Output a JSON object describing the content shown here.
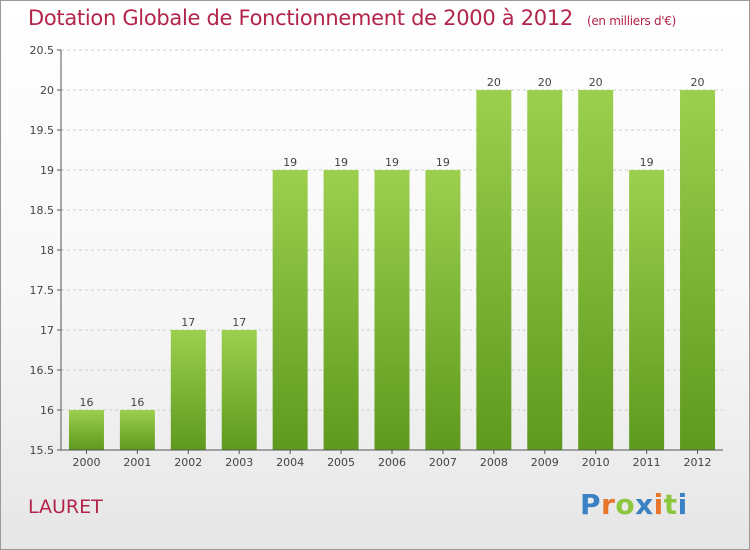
{
  "title": "Dotation Globale de Fonctionnement de 2000 à 2012",
  "subtitle": "(en milliers d'€)",
  "commune": "LAURET",
  "logo": {
    "text": "Proxiti",
    "letters": [
      "P",
      "r",
      "o",
      "x",
      "i",
      "t",
      "i"
    ],
    "colors": [
      "#3b82c4",
      "#e8762b",
      "#8dc63f",
      "#3b82c4",
      "#e8762b",
      "#8dc63f",
      "#3b82c4"
    ]
  },
  "colors": {
    "accent": "#b3244a",
    "bar_top": "#9ccf4e",
    "bar_bottom": "#5e9a1e",
    "grid": "#cccccc"
  },
  "chart_data": {
    "type": "bar",
    "categories": [
      "2000",
      "2001",
      "2002",
      "2003",
      "2004",
      "2005",
      "2006",
      "2007",
      "2008",
      "2009",
      "2010",
      "2011",
      "2012"
    ],
    "values": [
      16,
      16,
      17,
      17,
      19,
      19,
      19,
      19,
      20,
      20,
      20,
      19,
      20
    ],
    "ylim": [
      15.5,
      20.5
    ],
    "yticks": [
      "15.5",
      "16",
      "16.5",
      "17",
      "17.5",
      "18",
      "18.5",
      "19",
      "19.5",
      "20",
      "20.5"
    ],
    "grid": true
  }
}
